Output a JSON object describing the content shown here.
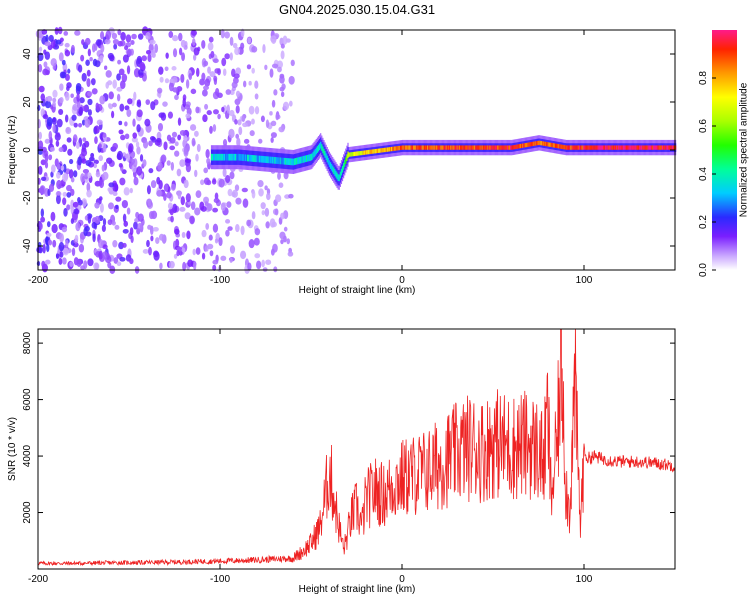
{
  "title": "GN04.2025.030.15.04.G31",
  "colorbar": {
    "label": "Normalized spectral amplitude",
    "ticks": [
      "0.0",
      "0.2",
      "0.4",
      "0.6",
      "0.8"
    ],
    "tick_values": [
      0.0,
      0.2,
      0.4,
      0.6,
      0.8
    ]
  },
  "chart_data": [
    {
      "type": "heatmap",
      "xlabel": "Height of straight line (km)",
      "ylabel": "Frequency (Hz)",
      "xlim": [
        -200,
        150
      ],
      "ylim": [
        -50,
        50
      ],
      "x_ticks": [
        "-200",
        "-100",
        "0",
        "100"
      ],
      "x_tick_values": [
        -200,
        -100,
        0,
        100
      ],
      "y_ticks": [
        "-40",
        "-20",
        "0",
        "20",
        "40"
      ],
      "y_tick_values": [
        -40,
        -20,
        0,
        20,
        40
      ],
      "value_range": [
        0,
        1
      ],
      "noise_region_x": [
        -200,
        -60
      ],
      "signal_band": [
        {
          "x": -105,
          "f": -3,
          "amp": 0.35
        },
        {
          "x": -90,
          "f": -3,
          "amp": 0.32
        },
        {
          "x": -75,
          "f": -4,
          "amp": 0.33
        },
        {
          "x": -60,
          "f": -5,
          "amp": 0.35
        },
        {
          "x": -50,
          "f": -3,
          "amp": 0.36
        },
        {
          "x": -45,
          "f": 2,
          "amp": 0.38
        },
        {
          "x": -40,
          "f": -6,
          "amp": 0.35
        },
        {
          "x": -35,
          "f": -12,
          "amp": 0.38
        },
        {
          "x": -30,
          "f": -2,
          "amp": 0.6
        },
        {
          "x": -20,
          "f": -1,
          "amp": 0.75
        },
        {
          "x": -10,
          "f": 0,
          "amp": 0.8
        },
        {
          "x": 0,
          "f": 1,
          "amp": 0.85
        },
        {
          "x": 20,
          "f": 1,
          "amp": 0.88
        },
        {
          "x": 40,
          "f": 1,
          "amp": 0.9
        },
        {
          "x": 60,
          "f": 1,
          "amp": 0.92
        },
        {
          "x": 75,
          "f": 3,
          "amp": 0.85
        },
        {
          "x": 90,
          "f": 1,
          "amp": 0.9
        },
        {
          "x": 110,
          "f": 1,
          "amp": 0.95
        },
        {
          "x": 130,
          "f": 1,
          "amp": 0.95
        },
        {
          "x": 150,
          "f": 1,
          "amp": 0.95
        }
      ]
    },
    {
      "type": "line",
      "xlabel": "Height of straight line (km)",
      "ylabel": "SNR (10 * v/v)",
      "xlim": [
        -200,
        150
      ],
      "ylim": [
        0,
        8500
      ],
      "x_ticks": [
        "-200",
        "-100",
        "0",
        "100"
      ],
      "x_tick_values": [
        -200,
        -100,
        0,
        100
      ],
      "y_ticks": [
        "2000",
        "4000",
        "6000",
        "8000"
      ],
      "y_tick_values": [
        2000,
        4000,
        6000,
        8000
      ],
      "series": [
        {
          "color": "#ee2222",
          "x": [
            -200,
            -180,
            -160,
            -140,
            -120,
            -100,
            -80,
            -70,
            -60,
            -55,
            -50,
            -45,
            -42,
            -40,
            -38,
            -36,
            -34,
            -32,
            -30,
            -28,
            -25,
            -22,
            -20,
            -15,
            -10,
            -5,
            0,
            5,
            10,
            15,
            20,
            25,
            30,
            35,
            40,
            45,
            50,
            55,
            60,
            65,
            70,
            75,
            78,
            80,
            82,
            85,
            88,
            90,
            92,
            95,
            98,
            100,
            102,
            105,
            110,
            120,
            130,
            140,
            150
          ],
          "y": [
            200,
            200,
            220,
            230,
            250,
            280,
            320,
            350,
            380,
            600,
            900,
            1500,
            2600,
            3500,
            2800,
            2000,
            1300,
            700,
            1200,
            1800,
            2200,
            1500,
            2400,
            2800,
            2600,
            3000,
            3200,
            3300,
            3400,
            3500,
            3700,
            3900,
            4100,
            4300,
            4300,
            4200,
            4500,
            4400,
            4300,
            4400,
            4400,
            4200,
            3800,
            5500,
            2500,
            4300,
            7500,
            3000,
            2000,
            6500,
            1500,
            4200,
            3900,
            4000,
            3900,
            3800,
            3800,
            3750,
            3650
          ]
        }
      ]
    }
  ]
}
